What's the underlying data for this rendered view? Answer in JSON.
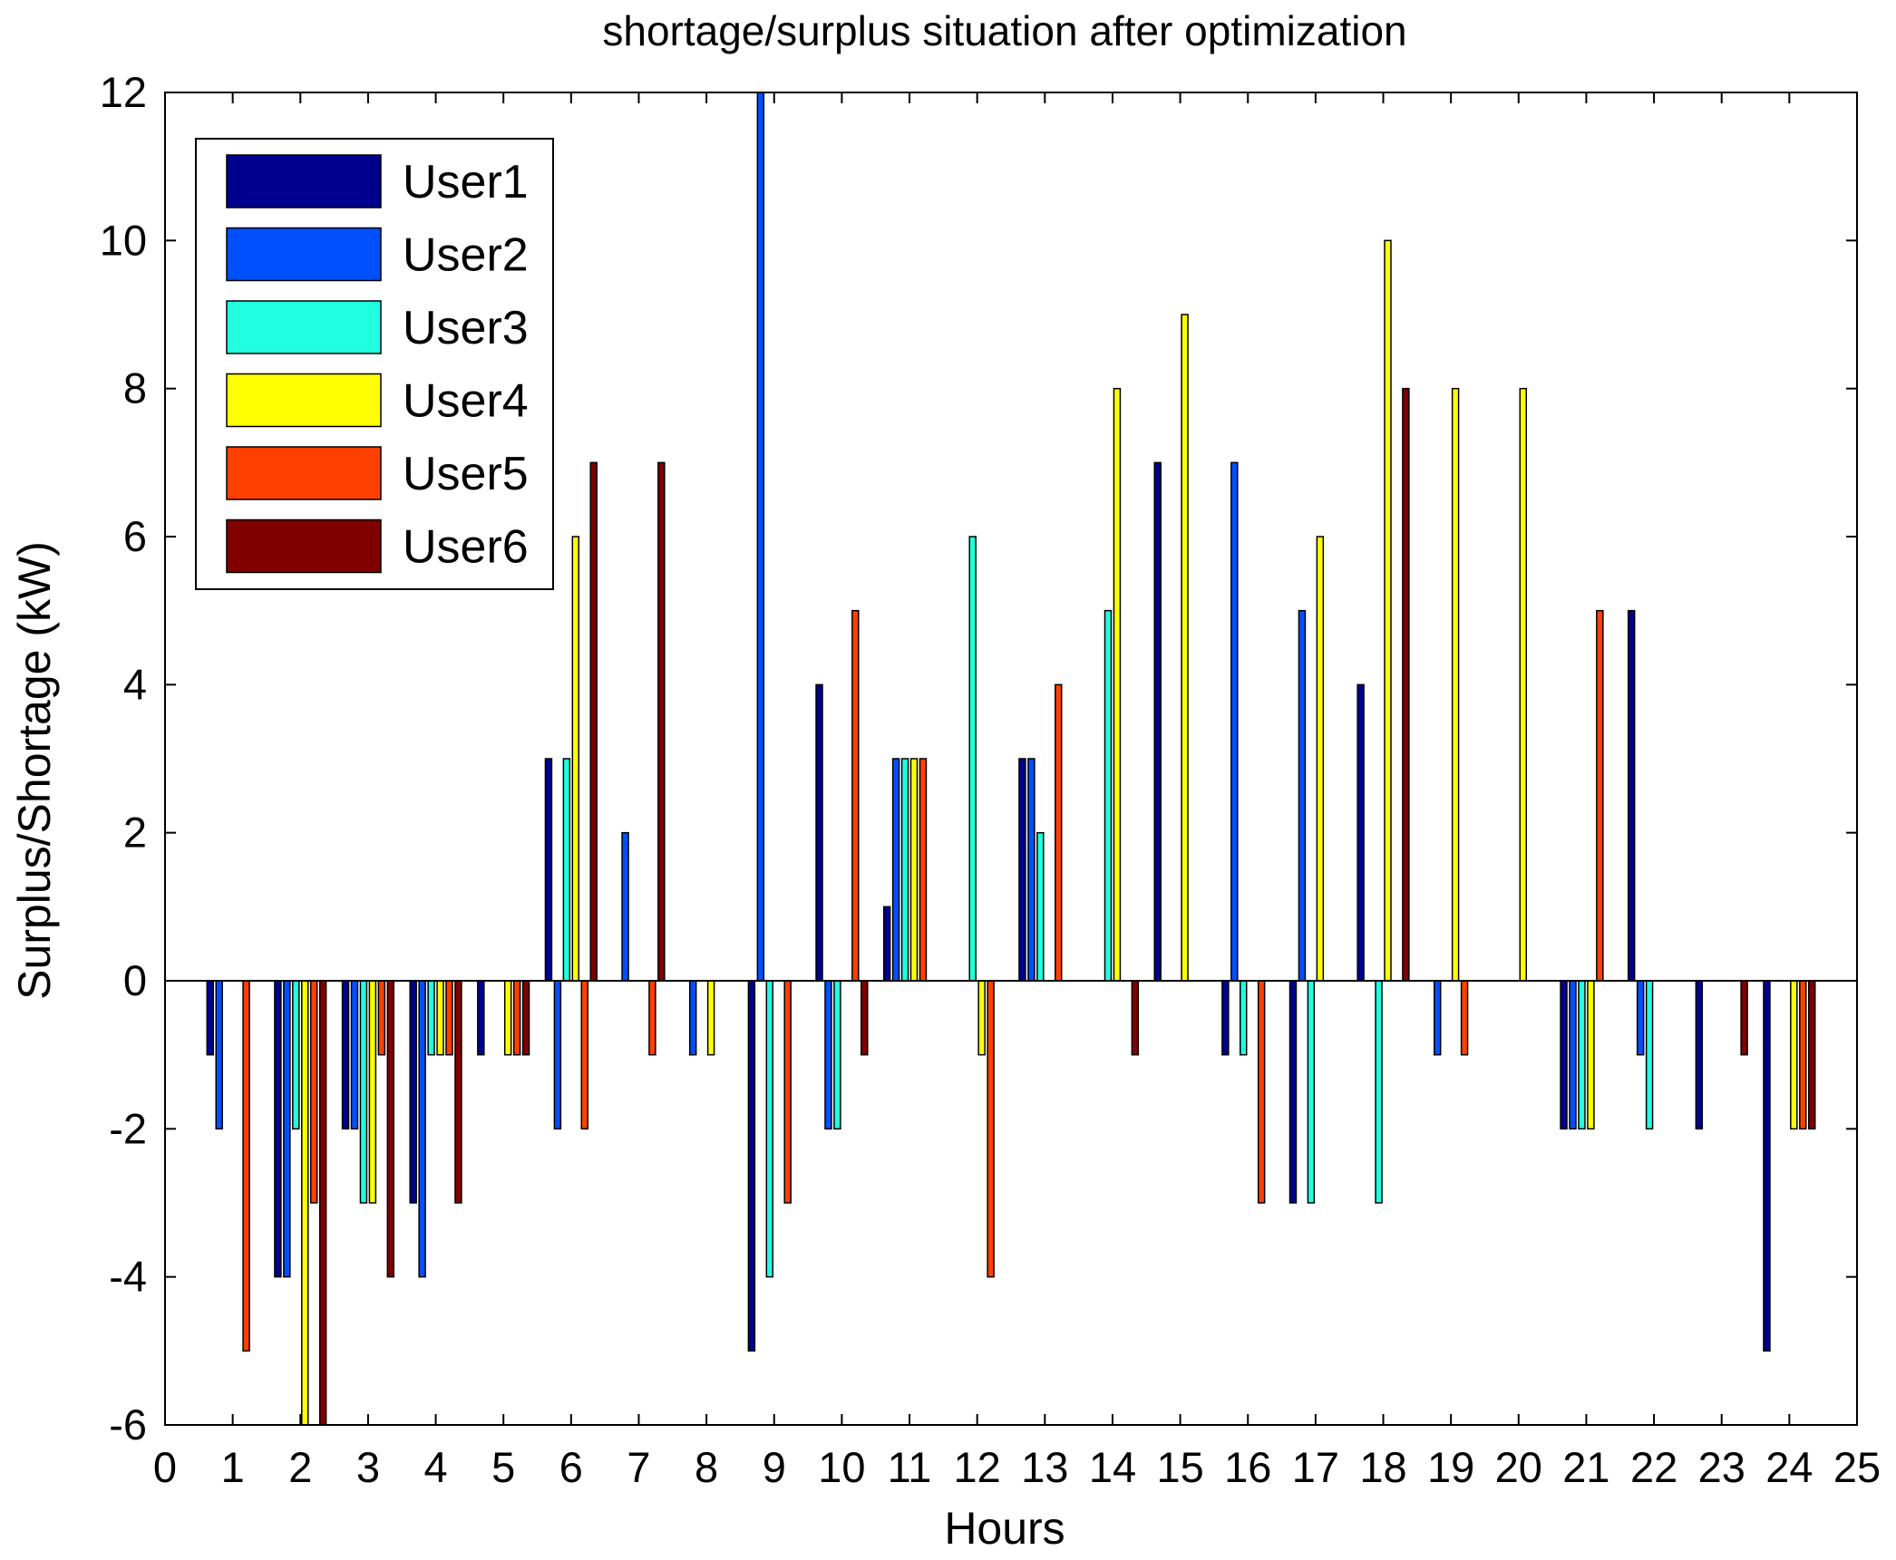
{
  "chart_data": {
    "type": "bar",
    "title": "shortage/surplus situation after optimization",
    "xlabel": "Hours",
    "ylabel": "Surplus/Shortage (kW)",
    "xlim": [
      0,
      25
    ],
    "ylim": [
      -6,
      12
    ],
    "x_ticks": [
      0,
      1,
      2,
      3,
      4,
      5,
      6,
      7,
      8,
      9,
      10,
      11,
      12,
      13,
      14,
      15,
      16,
      17,
      18,
      19,
      20,
      21,
      22,
      23,
      24,
      25
    ],
    "y_ticks": [
      -6,
      -4,
      -2,
      0,
      2,
      4,
      6,
      8,
      10,
      12
    ],
    "categories": [
      1,
      2,
      3,
      4,
      5,
      6,
      7,
      8,
      9,
      10,
      11,
      12,
      13,
      14,
      15,
      16,
      17,
      18,
      19,
      20,
      21,
      22,
      23,
      24
    ],
    "legend_position": "top-left",
    "grid": false,
    "series": [
      {
        "name": "User1",
        "color": "#00008f",
        "values": [
          -1,
          -4,
          -2,
          -3,
          -1,
          3,
          0,
          0,
          -5,
          4,
          1,
          0,
          3,
          0,
          7,
          -1,
          -3,
          4,
          0,
          0,
          -2,
          5,
          -2,
          -5
        ]
      },
      {
        "name": "User2",
        "color": "#0050ff",
        "values": [
          -2,
          -4,
          -2,
          -4,
          0,
          -2,
          2,
          -1,
          12,
          -2,
          3,
          0,
          3,
          0,
          0,
          7,
          5,
          0,
          -1,
          0,
          -2,
          -1,
          0,
          0
        ]
      },
      {
        "name": "User3",
        "color": "#20ffdf",
        "values": [
          0,
          -2,
          -3,
          -1,
          0,
          3,
          0,
          0,
          -4,
          -2,
          3,
          6,
          2,
          5,
          0,
          -1,
          -3,
          -3,
          0,
          0,
          -2,
          -2,
          0,
          0
        ]
      },
      {
        "name": "User4",
        "color": "#ffff00",
        "values": [
          0,
          -6,
          -3,
          -1,
          -1,
          6,
          0,
          -1,
          0,
          0,
          3,
          -1,
          0,
          8,
          9,
          0,
          6,
          10,
          8,
          8,
          -2,
          0,
          0,
          -2
        ]
      },
      {
        "name": "User5",
        "color": "#ff4000",
        "values": [
          -5,
          -3,
          -1,
          -1,
          -1,
          -2,
          -1,
          0,
          -3,
          5,
          3,
          -4,
          4,
          0,
          0,
          -3,
          0,
          0,
          -1,
          0,
          5,
          0,
          0,
          -2
        ]
      },
      {
        "name": "User6",
        "color": "#800000",
        "values": [
          0,
          -6,
          -4,
          -3,
          -1,
          7,
          7,
          0,
          0,
          -1,
          0,
          0,
          0,
          -1,
          0,
          0,
          0,
          8,
          0,
          0,
          0,
          0,
          -1,
          -2
        ]
      }
    ]
  }
}
